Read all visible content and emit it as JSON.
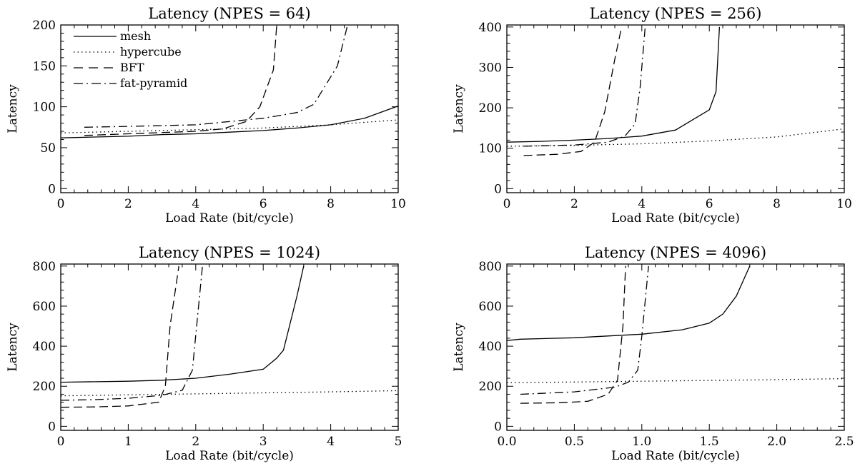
{
  "chart_data": [
    {
      "type": "line",
      "title": "Latency (NPES = 64)",
      "xlabel": "Load Rate (bit/cycle)",
      "ylabel": "Latency",
      "xlim": [
        0,
        10
      ],
      "ylim": [
        -5,
        200
      ],
      "xticks": [
        0,
        2,
        4,
        6,
        8,
        10
      ],
      "xtick_labels": [
        "0",
        "2",
        "4",
        "6",
        "8",
        "10"
      ],
      "yticks": [
        0,
        50,
        100,
        150,
        200
      ],
      "ytick_labels": [
        "0",
        "50",
        "100",
        "150",
        "200"
      ],
      "legend_position": "top-left",
      "series": [
        {
          "name": "mesh",
          "style": "solid",
          "x": [
            0,
            1,
            2,
            3,
            4,
            5,
            6,
            7,
            8,
            9,
            10
          ],
          "y": [
            62,
            63,
            64,
            66,
            67,
            69,
            71,
            74,
            78,
            86,
            101
          ]
        },
        {
          "name": "hypercube",
          "style": "dotted",
          "x": [
            0,
            2,
            4,
            6,
            8,
            10
          ],
          "y": [
            68,
            70,
            72,
            74,
            78,
            84
          ]
        },
        {
          "name": "BFT",
          "style": "dashed",
          "x": [
            0.7,
            2,
            4,
            4.8,
            5.5,
            5.9,
            6.3,
            6.4
          ],
          "y": [
            65,
            67,
            70,
            73,
            82,
            100,
            145,
            200
          ]
        },
        {
          "name": "fat-pyramid",
          "style": "dashdot",
          "x": [
            0.7,
            2,
            4,
            5,
            6,
            7,
            7.5,
            8.2,
            8.5
          ],
          "y": [
            75,
            76,
            78,
            82,
            86,
            93,
            103,
            150,
            200
          ]
        }
      ]
    },
    {
      "type": "line",
      "title": "Latency (NPES = 256)",
      "xlabel": "Load Rate (bit/cycle)",
      "ylabel": "Latency",
      "xlim": [
        0,
        10
      ],
      "ylim": [
        -10,
        405
      ],
      "xticks": [
        0,
        2,
        4,
        6,
        8,
        10
      ],
      "xtick_labels": [
        "0",
        "2",
        "4",
        "6",
        "8",
        "10"
      ],
      "yticks": [
        0,
        100,
        200,
        300,
        400
      ],
      "ytick_labels": [
        "0",
        "100",
        "200",
        "300",
        "400"
      ],
      "series": [
        {
          "name": "mesh",
          "style": "solid",
          "x": [
            0,
            1,
            2,
            3,
            4,
            5,
            5.5,
            6,
            6.2,
            6.3
          ],
          "y": [
            115,
            117,
            120,
            124,
            130,
            145,
            170,
            195,
            240,
            400
          ]
        },
        {
          "name": "hypercube",
          "style": "dotted",
          "x": [
            0,
            2,
            4,
            6,
            8,
            10
          ],
          "y": [
            105,
            107,
            111,
            118,
            128,
            148
          ]
        },
        {
          "name": "BFT",
          "style": "dashed",
          "x": [
            0.5,
            1.5,
            2.2,
            2.6,
            2.9,
            3.2,
            3.4
          ],
          "y": [
            82,
            85,
            92,
            115,
            190,
            320,
            400
          ]
        },
        {
          "name": "fat-pyramid",
          "style": "dashdot",
          "x": [
            0.5,
            2,
            3,
            3.5,
            3.8,
            3.95,
            4.1
          ],
          "y": [
            105,
            108,
            115,
            130,
            160,
            250,
            400
          ]
        }
      ]
    },
    {
      "type": "line",
      "title": "Latency (NPES = 1024)",
      "xlabel": "Load Rate (bit/cycle)",
      "ylabel": "Latency",
      "xlim": [
        0,
        5
      ],
      "ylim": [
        -20,
        810
      ],
      "xticks": [
        0,
        1,
        2,
        3,
        4,
        5
      ],
      "xtick_labels": [
        "0",
        "1",
        "2",
        "3",
        "4",
        "5"
      ],
      "yticks": [
        0,
        200,
        400,
        600,
        800
      ],
      "ytick_labels": [
        "0",
        "200",
        "400",
        "600",
        "800"
      ],
      "series": [
        {
          "name": "mesh",
          "style": "solid",
          "x": [
            0,
            1,
            1.5,
            2,
            2.5,
            3,
            3.2,
            3.3,
            3.5,
            3.6
          ],
          "y": [
            220,
            225,
            230,
            240,
            260,
            285,
            340,
            380,
            650,
            800
          ]
        },
        {
          "name": "hypercube",
          "style": "dotted",
          "x": [
            0,
            1,
            2,
            3,
            4,
            5
          ],
          "y": [
            152,
            157,
            162,
            167,
            172,
            178
          ]
        },
        {
          "name": "BFT",
          "style": "dashed",
          "x": [
            0,
            0.5,
            1,
            1.45,
            1.55,
            1.62,
            1.75
          ],
          "y": [
            95,
            97,
            102,
            120,
            200,
            500,
            800
          ]
        },
        {
          "name": "fat-pyramid",
          "style": "dashdot",
          "x": [
            0,
            0.5,
            1,
            1.5,
            1.8,
            1.95,
            2.1
          ],
          "y": [
            130,
            133,
            140,
            155,
            180,
            280,
            800
          ]
        }
      ]
    },
    {
      "type": "line",
      "title": "Latency (NPES = 4096)",
      "xlabel": "Load Rate (bit/cycle)",
      "ylabel": "Latency",
      "xlim": [
        0,
        2.5
      ],
      "ylim": [
        -20,
        810
      ],
      "xticks": [
        0,
        0.5,
        1,
        1.5,
        2,
        2.5
      ],
      "xtick_labels": [
        "0.0",
        "0.5",
        "1.0",
        "1.5",
        "2.0",
        "2.5"
      ],
      "yticks": [
        0,
        200,
        400,
        600,
        800
      ],
      "ytick_labels": [
        "0",
        "200",
        "400",
        "600",
        "800"
      ],
      "series": [
        {
          "name": "mesh",
          "style": "solid",
          "x": [
            0,
            0.1,
            0.5,
            1,
            1.3,
            1.5,
            1.6,
            1.7,
            1.8
          ],
          "y": [
            428,
            435,
            442,
            460,
            482,
            515,
            560,
            650,
            800
          ]
        },
        {
          "name": "hypercube",
          "style": "dotted",
          "x": [
            0,
            0.5,
            1,
            1.5,
            2,
            2.5
          ],
          "y": [
            218,
            221,
            225,
            229,
            233,
            238
          ]
        },
        {
          "name": "BFT",
          "style": "dashed",
          "x": [
            0.1,
            0.4,
            0.6,
            0.75,
            0.82,
            0.86,
            0.88
          ],
          "y": [
            115,
            118,
            125,
            160,
            230,
            500,
            800
          ]
        },
        {
          "name": "fat-pyramid",
          "style": "dashdot",
          "x": [
            0.1,
            0.5,
            0.8,
            0.9,
            0.97,
            1.0,
            1.05
          ],
          "y": [
            160,
            172,
            195,
            220,
            280,
            450,
            800
          ]
        }
      ]
    }
  ]
}
